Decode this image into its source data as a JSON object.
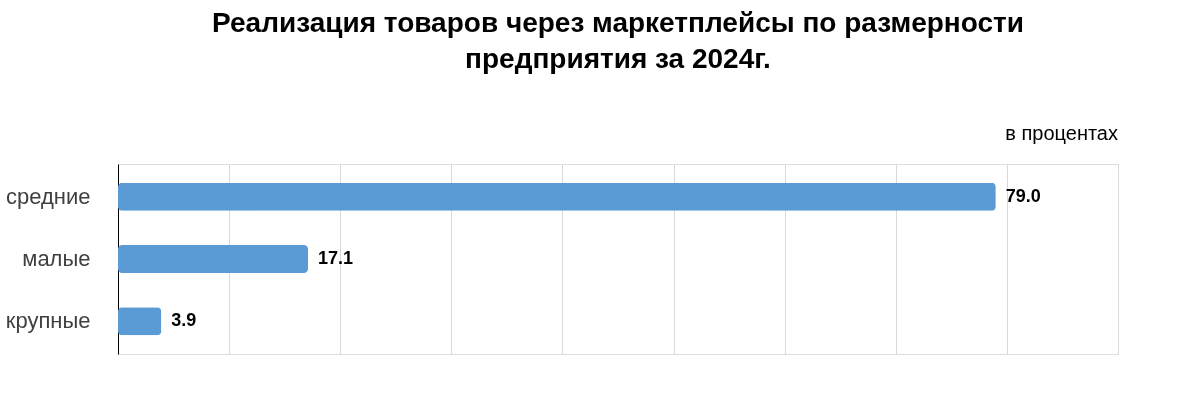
{
  "chart_data": {
    "type": "bar",
    "orientation": "horizontal",
    "title": "Реализация товаров через маркетплейсы по размерности предприятия за 2024г.",
    "annotations": [
      "в процентах"
    ],
    "categories": [
      "средние",
      "малые",
      "крупные"
    ],
    "values": [
      79.0,
      17.1,
      3.9
    ],
    "color": "#5b9bd5",
    "value_labels": [
      "79.0",
      "17.1",
      "3.9"
    ],
    "xlim": [
      0,
      90
    ],
    "xticks": [
      {
        "value": 0,
        "label": null
      },
      {
        "value": 10,
        "label": null
      },
      {
        "value": 20,
        "label": null
      },
      {
        "value": 30,
        "label": null
      },
      {
        "value": 40,
        "label": null
      },
      {
        "value": 50,
        "label": null
      },
      {
        "value": 60,
        "label": null
      },
      {
        "value": 70,
        "label": null
      },
      {
        "value": 80,
        "label": null
      },
      {
        "value": 90,
        "label": null
      }
    ],
    "grid": "x",
    "tick_labels": "y"
  }
}
